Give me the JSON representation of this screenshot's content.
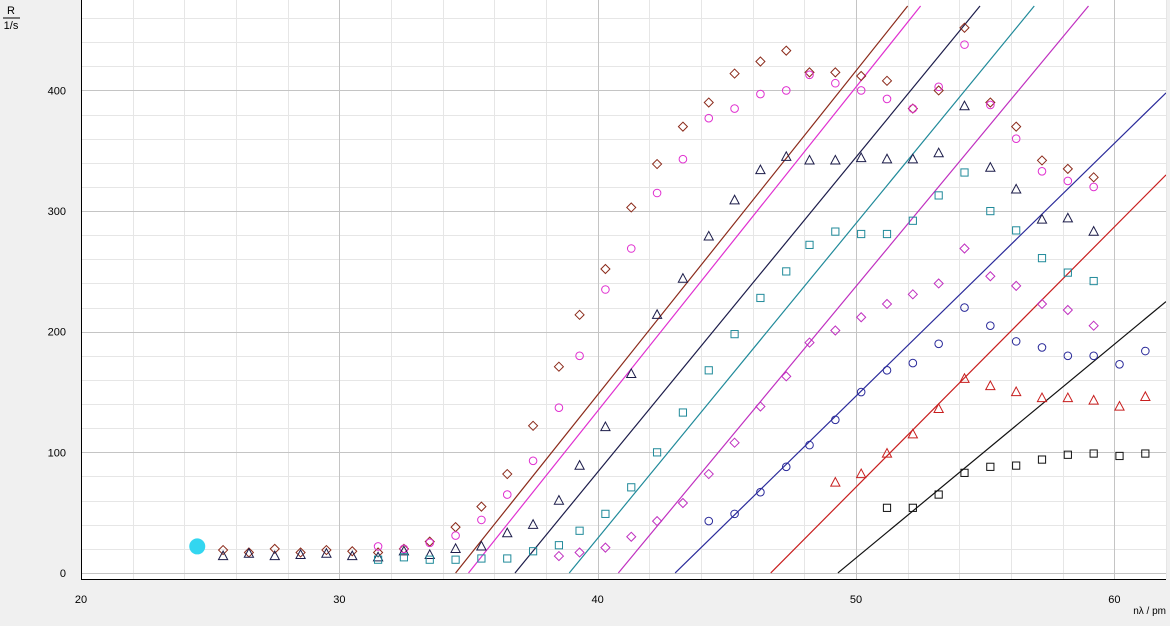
{
  "chart_data": {
    "type": "scatter",
    "title": "",
    "ylabel_num": "R",
    "ylabel_den": "1/s",
    "xlabel": "nλ / pm",
    "xlim": [
      20,
      62
    ],
    "ylim": [
      -5,
      475
    ],
    "xticks": [
      20,
      30,
      40,
      50,
      60
    ],
    "yticks": [
      0,
      100,
      200,
      300,
      400
    ],
    "grid": true,
    "legend": "none",
    "highlight_point": {
      "x": 24.5,
      "y": 22,
      "color": "#33d6f0"
    },
    "series": [
      {
        "marker": "diamond",
        "color": "#8b2a1a",
        "points": [
          [
            25.5,
            19
          ],
          [
            26.5,
            17
          ],
          [
            27.5,
            20
          ],
          [
            28.5,
            17
          ],
          [
            29.5,
            19
          ],
          [
            30.5,
            18
          ],
          [
            31.5,
            17
          ],
          [
            32.5,
            20
          ],
          [
            33.5,
            26
          ],
          [
            34.5,
            38
          ],
          [
            35.5,
            55
          ],
          [
            36.5,
            82
          ],
          [
            37.5,
            122
          ],
          [
            38.5,
            171
          ],
          [
            39.3,
            214
          ],
          [
            40.3,
            252
          ],
          [
            41.3,
            303
          ],
          [
            42.3,
            339
          ],
          [
            43.3,
            370
          ],
          [
            44.3,
            390
          ],
          [
            45.3,
            414
          ],
          [
            46.3,
            424
          ],
          [
            47.3,
            433
          ],
          [
            48.2,
            415
          ],
          [
            49.2,
            415
          ],
          [
            50.2,
            412
          ],
          [
            51.2,
            408
          ],
          [
            52.2,
            385
          ],
          [
            53.2,
            400
          ],
          [
            54.2,
            452
          ],
          [
            55.2,
            390
          ],
          [
            56.2,
            370
          ],
          [
            57.2,
            342
          ],
          [
            58.2,
            335
          ],
          [
            59.2,
            328
          ]
        ],
        "fit": [
          [
            34.5,
            0
          ],
          [
            52.0,
            470
          ]
        ]
      },
      {
        "marker": "circle",
        "color": "#e030d0",
        "points": [
          [
            31.5,
            22
          ],
          [
            32.5,
            20
          ],
          [
            33.5,
            25
          ],
          [
            34.5,
            31
          ],
          [
            35.5,
            44
          ],
          [
            36.5,
            65
          ],
          [
            37.5,
            93
          ],
          [
            38.5,
            137
          ],
          [
            39.3,
            180
          ],
          [
            40.3,
            235
          ],
          [
            41.3,
            269
          ],
          [
            42.3,
            315
          ],
          [
            43.3,
            343
          ],
          [
            44.3,
            377
          ],
          [
            45.3,
            385
          ],
          [
            46.3,
            397
          ],
          [
            47.3,
            400
          ],
          [
            48.2,
            413
          ],
          [
            49.2,
            406
          ],
          [
            50.2,
            400
          ],
          [
            51.2,
            393
          ],
          [
            52.2,
            385
          ],
          [
            53.2,
            403
          ],
          [
            54.2,
            438
          ],
          [
            55.2,
            388
          ],
          [
            56.2,
            360
          ],
          [
            57.2,
            333
          ],
          [
            58.2,
            325
          ],
          [
            59.2,
            320
          ]
        ],
        "fit": [
          [
            35.0,
            0
          ],
          [
            52.5,
            470
          ]
        ]
      },
      {
        "marker": "triangle",
        "color": "#1c1c4a",
        "points": [
          [
            25.5,
            14
          ],
          [
            26.5,
            16
          ],
          [
            27.5,
            14
          ],
          [
            28.5,
            15
          ],
          [
            29.5,
            16
          ],
          [
            30.5,
            14
          ],
          [
            31.5,
            13
          ],
          [
            32.5,
            18
          ],
          [
            33.5,
            15
          ],
          [
            34.5,
            20
          ],
          [
            35.5,
            22
          ],
          [
            36.5,
            33
          ],
          [
            37.5,
            40
          ],
          [
            38.5,
            60
          ],
          [
            39.3,
            89
          ],
          [
            40.3,
            121
          ],
          [
            41.3,
            165
          ],
          [
            42.3,
            214
          ],
          [
            43.3,
            244
          ],
          [
            44.3,
            279
          ],
          [
            45.3,
            309
          ],
          [
            46.3,
            334
          ],
          [
            47.3,
            345
          ],
          [
            48.2,
            342
          ],
          [
            49.2,
            342
          ],
          [
            50.2,
            344
          ],
          [
            51.2,
            343
          ],
          [
            52.2,
            343
          ],
          [
            53.2,
            348
          ],
          [
            54.2,
            387
          ],
          [
            55.2,
            336
          ],
          [
            56.2,
            318
          ],
          [
            57.2,
            293
          ],
          [
            58.2,
            294
          ],
          [
            59.2,
            283
          ]
        ],
        "fit": [
          [
            36.8,
            0
          ],
          [
            54.8,
            470
          ]
        ]
      },
      {
        "marker": "square",
        "color": "#208a9a",
        "points": [
          [
            31.5,
            11
          ],
          [
            32.5,
            13
          ],
          [
            33.5,
            11
          ],
          [
            34.5,
            11
          ],
          [
            35.5,
            12
          ],
          [
            36.5,
            12
          ],
          [
            37.5,
            18
          ],
          [
            38.5,
            23
          ],
          [
            39.3,
            35
          ],
          [
            40.3,
            49
          ],
          [
            41.3,
            71
          ],
          [
            42.3,
            100
          ],
          [
            43.3,
            133
          ],
          [
            44.3,
            168
          ],
          [
            45.3,
            198
          ],
          [
            46.3,
            228
          ],
          [
            47.3,
            250
          ],
          [
            48.2,
            272
          ],
          [
            49.2,
            283
          ],
          [
            50.2,
            281
          ],
          [
            51.2,
            281
          ],
          [
            52.2,
            292
          ],
          [
            53.2,
            313
          ],
          [
            54.2,
            332
          ],
          [
            55.2,
            300
          ],
          [
            56.2,
            284
          ],
          [
            57.2,
            261
          ],
          [
            58.2,
            249
          ],
          [
            59.2,
            242
          ]
        ],
        "fit": [
          [
            38.9,
            0
          ],
          [
            56.9,
            470
          ]
        ]
      },
      {
        "marker": "diamond",
        "color": "#c030c0",
        "points": [
          [
            38.5,
            14
          ],
          [
            39.3,
            17
          ],
          [
            40.3,
            21
          ],
          [
            41.3,
            30
          ],
          [
            42.3,
            43
          ],
          [
            43.3,
            58
          ],
          [
            44.3,
            82
          ],
          [
            45.3,
            108
          ],
          [
            46.3,
            138
          ],
          [
            47.3,
            163
          ],
          [
            48.2,
            191
          ],
          [
            49.2,
            201
          ],
          [
            50.2,
            212
          ],
          [
            51.2,
            223
          ],
          [
            52.2,
            231
          ],
          [
            53.2,
            240
          ],
          [
            54.2,
            269
          ],
          [
            55.2,
            246
          ],
          [
            56.2,
            238
          ],
          [
            57.2,
            223
          ],
          [
            58.2,
            218
          ],
          [
            59.2,
            205
          ]
        ],
        "fit": [
          [
            40.8,
            0
          ],
          [
            59.0,
            470
          ]
        ]
      },
      {
        "marker": "circle",
        "color": "#2a2a9a",
        "points": [
          [
            44.3,
            43
          ],
          [
            45.3,
            49
          ],
          [
            46.3,
            67
          ],
          [
            47.3,
            88
          ],
          [
            48.2,
            106
          ],
          [
            49.2,
            127
          ],
          [
            50.2,
            150
          ],
          [
            51.2,
            168
          ],
          [
            52.2,
            174
          ],
          [
            53.2,
            190
          ],
          [
            54.2,
            220
          ],
          [
            55.2,
            205
          ],
          [
            56.2,
            192
          ],
          [
            57.2,
            187
          ],
          [
            58.2,
            180
          ],
          [
            59.2,
            180
          ],
          [
            60.2,
            173
          ],
          [
            61.2,
            184
          ]
        ],
        "fit": [
          [
            43.0,
            0
          ],
          [
            62.0,
            398
          ]
        ]
      },
      {
        "marker": "triangle",
        "color": "#c81e1e",
        "points": [
          [
            49.2,
            75
          ],
          [
            50.2,
            82
          ],
          [
            51.2,
            99
          ],
          [
            52.2,
            115
          ],
          [
            53.2,
            136
          ],
          [
            54.2,
            161
          ],
          [
            55.2,
            155
          ],
          [
            56.2,
            150
          ],
          [
            57.2,
            145
          ],
          [
            58.2,
            145
          ],
          [
            59.2,
            143
          ],
          [
            60.2,
            138
          ],
          [
            61.2,
            146
          ]
        ],
        "fit": [
          [
            46.7,
            0
          ],
          [
            62.0,
            330
          ]
        ]
      },
      {
        "marker": "square",
        "color": "#111111",
        "points": [
          [
            51.2,
            54
          ],
          [
            52.2,
            54
          ],
          [
            53.2,
            65
          ],
          [
            54.2,
            83
          ],
          [
            55.2,
            88
          ],
          [
            56.2,
            89
          ],
          [
            57.2,
            94
          ],
          [
            58.2,
            98
          ],
          [
            59.2,
            99
          ],
          [
            60.2,
            97
          ],
          [
            61.2,
            99
          ]
        ],
        "fit": [
          [
            49.3,
            0
          ],
          [
            62.0,
            225
          ]
        ]
      }
    ]
  }
}
